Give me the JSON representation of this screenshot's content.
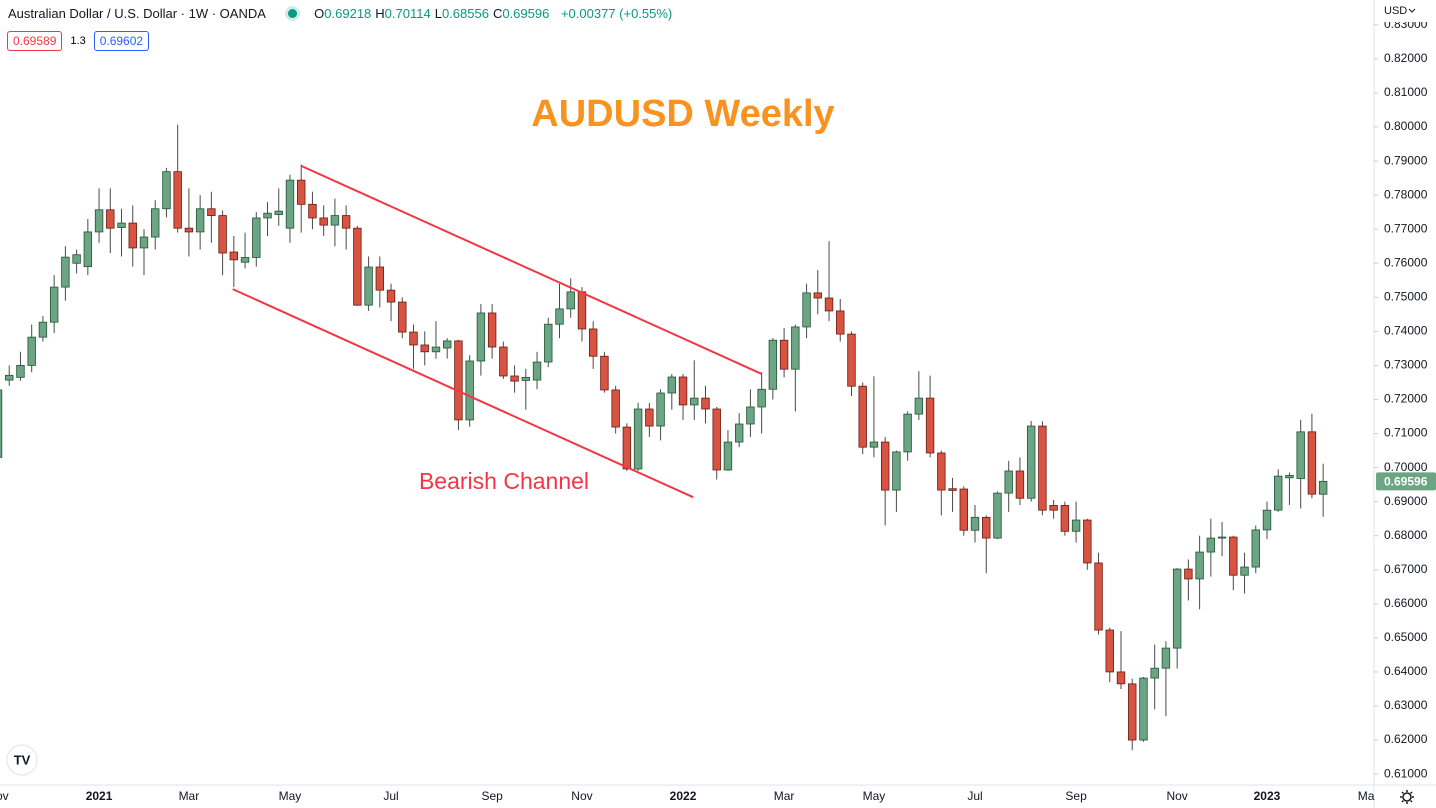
{
  "chart_data": {
    "type": "candlestick",
    "symbol_title": "Australian Dollar / U.S. Dollar · 1W · OANDA",
    "ohlc_legend": [
      {
        "label": "O",
        "value": "0.69218"
      },
      {
        "label": "H",
        "value": "0.70114"
      },
      {
        "label": "L",
        "value": "0.68556"
      },
      {
        "label": "C",
        "value": "0.69596"
      }
    ],
    "change": "+0.00377 (+0.55%)",
    "bid": "0.69589",
    "spread": "1.3",
    "ask": "0.69602",
    "currency": "USD",
    "title": "AUDUSD Weekly",
    "annotation": "Bearish Channel",
    "up_color": "#6ba583",
    "up_border": "#225437",
    "down_color": "#d75442",
    "down_border": "#6b1b10",
    "wick_color": "#4a4a4a",
    "grid": false,
    "categories": [
      "Nov",
      null,
      null,
      null,
      null,
      null,
      null,
      null,
      null,
      "2021",
      null,
      null,
      null,
      null,
      null,
      null,
      null,
      "Mar",
      null,
      null,
      null,
      null,
      null,
      null,
      null,
      null,
      "May",
      null,
      null,
      null,
      null,
      null,
      null,
      null,
      null,
      "Jul",
      null,
      null,
      null,
      null,
      null,
      null,
      null,
      null,
      "Sep",
      null,
      null,
      null,
      null,
      null,
      null,
      null,
      "Nov",
      null,
      null,
      null,
      null,
      null,
      null,
      null,
      null,
      "2022",
      null,
      null,
      null,
      null,
      null,
      null,
      null,
      null,
      "Mar",
      null,
      null,
      null,
      null,
      null,
      null,
      null,
      "May",
      null,
      null,
      null,
      null,
      null,
      null,
      null,
      null,
      "Jul",
      null,
      null,
      null,
      null,
      null,
      null,
      null,
      null,
      "Sep",
      null,
      null,
      null,
      null,
      null,
      null,
      null,
      null,
      "Nov",
      null,
      null,
      null,
      null,
      null,
      null,
      null,
      "2023",
      null,
      null,
      null,
      null,
      null,
      null,
      null,
      null,
      "Mar"
    ],
    "open": [
      0.703,
      0.7257,
      0.7265,
      0.73,
      0.7383,
      0.7427,
      0.753,
      0.76,
      0.759,
      0.7692,
      0.7757,
      0.7705,
      0.7718,
      0.7645,
      0.7677,
      0.776,
      0.7869,
      0.7703,
      0.7692,
      0.776,
      0.774,
      0.7633,
      0.7603,
      0.7617,
      0.7733,
      0.7743,
      0.7703,
      0.7844,
      0.7773,
      0.7733,
      0.7712,
      0.774,
      0.7703,
      0.7477,
      0.7589,
      0.7521,
      0.7486,
      0.7398,
      0.736,
      0.734,
      0.7351,
      0.7372,
      0.714,
      0.7313,
      0.7454,
      0.7354,
      0.7269,
      0.7256,
      0.7257,
      0.731,
      0.7421,
      0.7466,
      0.7516,
      0.7407,
      0.7327,
      0.7228,
      0.7119,
      0.6996,
      0.7172,
      0.7122,
      0.7219,
      0.7266,
      0.7184,
      0.7204,
      0.7172,
      0.6993,
      0.7075,
      0.7128,
      0.7178,
      0.723,
      0.7374,
      0.7289,
      0.7413,
      0.7513,
      0.7498,
      0.746,
      0.7392,
      0.7239,
      0.706,
      0.7075,
      0.6934,
      0.7046,
      0.7157,
      0.7204,
      0.7043,
      0.6938,
      0.6937,
      0.6816,
      0.6854,
      0.6793,
      0.6925,
      0.699,
      0.691,
      0.7122,
      0.6889,
      0.6889,
      0.6813,
      0.6846,
      0.672,
      0.6523,
      0.64,
      0.6365,
      0.62,
      0.6382,
      0.6411,
      0.647,
      0.6702,
      0.6673,
      0.6752,
      0.6793,
      0.6796,
      0.6684,
      0.6708,
      0.6817,
      0.6875,
      0.697,
      0.6968,
      0.7105,
      0.69218,
      null,
      null,
      null,
      null
    ],
    "high": [
      0.725,
      0.73,
      0.734,
      0.742,
      0.7445,
      0.7565,
      0.765,
      0.764,
      0.773,
      0.782,
      0.782,
      0.776,
      0.777,
      0.77,
      0.7785,
      0.788,
      0.8007,
      0.782,
      0.78,
      0.781,
      0.7755,
      0.768,
      0.769,
      0.775,
      0.778,
      0.782,
      0.786,
      0.789,
      0.781,
      0.777,
      0.779,
      0.777,
      0.771,
      0.762,
      0.762,
      0.754,
      0.75,
      0.742,
      0.74,
      0.743,
      0.738,
      0.7375,
      0.733,
      0.748,
      0.748,
      0.737,
      0.73,
      0.729,
      0.734,
      0.744,
      0.754,
      0.7556,
      0.753,
      0.743,
      0.734,
      0.724,
      0.713,
      0.719,
      0.719,
      0.723,
      0.7275,
      0.7275,
      0.7315,
      0.724,
      0.7178,
      0.711,
      0.716,
      0.723,
      0.728,
      0.738,
      0.741,
      0.742,
      0.754,
      0.758,
      0.7665,
      0.7495,
      0.74,
      0.725,
      0.7268,
      0.709,
      0.705,
      0.7165,
      0.7283,
      0.727,
      0.705,
      0.697,
      0.6945,
      0.689,
      0.686,
      0.693,
      0.702,
      0.703,
      0.7137,
      0.7136,
      0.6905,
      0.69,
      0.69,
      0.685,
      0.675,
      0.653,
      0.652,
      0.638,
      0.6385,
      0.648,
      0.649,
      0.6705,
      0.673,
      0.68,
      0.685,
      0.684,
      0.68,
      0.675,
      0.683,
      0.69,
      0.6995,
      0.6985,
      0.714,
      0.7158,
      0.70114,
      null,
      null,
      null,
      null
    ],
    "low": [
      0.7,
      0.724,
      0.7255,
      0.728,
      0.737,
      0.7395,
      0.749,
      0.757,
      0.7565,
      0.766,
      0.763,
      0.762,
      0.759,
      0.7565,
      0.764,
      0.7735,
      0.769,
      0.762,
      0.764,
      0.766,
      0.7565,
      0.753,
      0.7585,
      0.759,
      0.768,
      0.771,
      0.766,
      0.769,
      0.77,
      0.768,
      0.765,
      0.764,
      0.7475,
      0.746,
      0.747,
      0.743,
      0.738,
      0.729,
      0.73,
      0.732,
      0.732,
      0.711,
      0.712,
      0.727,
      0.732,
      0.726,
      0.722,
      0.717,
      0.723,
      0.7295,
      0.738,
      0.744,
      0.737,
      0.729,
      0.722,
      0.71,
      0.699,
      0.699,
      0.709,
      0.708,
      0.717,
      0.714,
      0.714,
      0.713,
      0.6965,
      0.699,
      0.706,
      0.709,
      0.71,
      0.72,
      0.7265,
      0.7165,
      0.738,
      0.745,
      0.743,
      0.737,
      0.721,
      0.704,
      0.703,
      0.683,
      0.687,
      0.702,
      0.714,
      0.703,
      0.686,
      0.687,
      0.68,
      0.678,
      0.669,
      0.679,
      0.687,
      0.689,
      0.69,
      0.686,
      0.685,
      0.68,
      0.678,
      0.67,
      0.651,
      0.637,
      0.635,
      0.617,
      0.6195,
      0.629,
      0.627,
      0.641,
      0.661,
      0.6584,
      0.668,
      0.674,
      0.664,
      0.663,
      0.669,
      0.679,
      0.687,
      0.689,
      0.688,
      0.691,
      0.68556,
      null,
      null,
      null,
      null
    ],
    "close": [
      0.7228,
      0.7271,
      0.73,
      0.7383,
      0.7427,
      0.753,
      0.7618,
      0.7625,
      0.7692,
      0.7757,
      0.7703,
      0.7718,
      0.7645,
      0.7677,
      0.776,
      0.7869,
      0.7703,
      0.7692,
      0.776,
      0.774,
      0.763,
      0.761,
      0.7617,
      0.7733,
      0.7747,
      0.7753,
      0.7844,
      0.7773,
      0.7733,
      0.7712,
      0.774,
      0.7703,
      0.7477,
      0.7589,
      0.7521,
      0.7486,
      0.7398,
      0.736,
      0.734,
      0.7354,
      0.7372,
      0.714,
      0.7313,
      0.7454,
      0.7354,
      0.7269,
      0.7254,
      0.7265,
      0.731,
      0.7421,
      0.7466,
      0.7516,
      0.7407,
      0.7327,
      0.7228,
      0.7119,
      0.6996,
      0.7172,
      0.7122,
      0.7219,
      0.7266,
      0.7184,
      0.7204,
      0.7172,
      0.6993,
      0.7075,
      0.7128,
      0.7178,
      0.723,
      0.7374,
      0.7289,
      0.7413,
      0.7513,
      0.7498,
      0.746,
      0.7392,
      0.7239,
      0.706,
      0.7075,
      0.6934,
      0.7046,
      0.7157,
      0.7204,
      0.7043,
      0.6934,
      0.6933,
      0.6816,
      0.6854,
      0.6793,
      0.6925,
      0.699,
      0.691,
      0.7122,
      0.6875,
      0.6875,
      0.6813,
      0.6846,
      0.672,
      0.6523,
      0.64,
      0.6365,
      0.62,
      0.6382,
      0.6411,
      0.647,
      0.6702,
      0.6673,
      0.6752,
      0.6793,
      0.6796,
      0.6684,
      0.6708,
      0.6817,
      0.6875,
      0.6975,
      0.6977,
      0.7105,
      0.6922,
      0.69596,
      null,
      null,
      null,
      null
    ],
    "channel": {
      "color": "#f23645",
      "lines": [
        {
          "x": [
            27.0,
            68.0
          ],
          "y": [
            0.7886,
            0.7275
          ]
        },
        {
          "x": [
            20.9,
            61.9
          ],
          "y": [
            0.7524,
            0.6913
          ]
        }
      ]
    },
    "ylim": [
      0.6068,
      0.8373
    ],
    "yticks": [
      {
        "value": 0.61,
        "label": "0.61000"
      },
      {
        "value": 0.62,
        "label": "0.62000"
      },
      {
        "value": 0.63,
        "label": "0.63000"
      },
      {
        "value": 0.64,
        "label": "0.64000"
      },
      {
        "value": 0.65,
        "label": "0.65000"
      },
      {
        "value": 0.66,
        "label": "0.66000"
      },
      {
        "value": 0.67,
        "label": "0.67000"
      },
      {
        "value": 0.68,
        "label": "0.68000"
      },
      {
        "value": 0.69,
        "label": "0.69000"
      },
      {
        "value": 0.7,
        "label": "0.70000"
      },
      {
        "value": 0.71,
        "label": "0.71000"
      },
      {
        "value": 0.72,
        "label": "0.72000"
      },
      {
        "value": 0.73,
        "label": "0.73000"
      },
      {
        "value": 0.74,
        "label": "0.74000"
      },
      {
        "value": 0.75,
        "label": "0.75000"
      },
      {
        "value": 0.76,
        "label": "0.76000"
      },
      {
        "value": 0.77,
        "label": "0.77000"
      },
      {
        "value": 0.78,
        "label": "0.78000"
      },
      {
        "value": 0.79,
        "label": "0.79000"
      },
      {
        "value": 0.8,
        "label": "0.80000"
      },
      {
        "value": 0.81,
        "label": "0.81000"
      },
      {
        "value": 0.82,
        "label": "0.82000"
      },
      {
        "value": 0.83,
        "label": "0.83000"
      }
    ]
  }
}
